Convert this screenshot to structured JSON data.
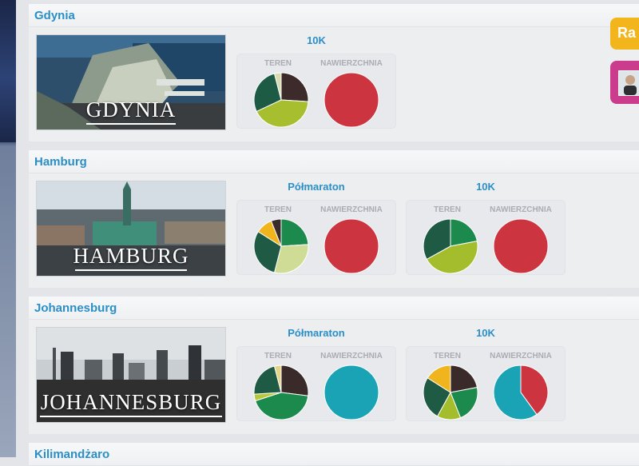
{
  "cities": [
    {
      "name": "Gdynia",
      "banner_label": "GDYNIA",
      "races": [
        {
          "title": "10K",
          "terrain_label": "TEREN",
          "surface_label": "NAWIERZCHNIA",
          "terrain": [
            {
              "value": 0.26,
              "color": "#3d2a2a"
            },
            {
              "value": 0.42,
              "color": "#a7bf2f"
            },
            {
              "value": 0.28,
              "color": "#1e5b45"
            },
            {
              "value": 0.04,
              "color": "#d7dbb0"
            }
          ],
          "surface": [
            {
              "value": 1.0,
              "color": "#cc3540"
            }
          ]
        }
      ]
    },
    {
      "name": "Hamburg",
      "banner_label": "HAMBURG",
      "races": [
        {
          "title": "Półmaraton",
          "terrain_label": "TEREN",
          "surface_label": "NAWIERZCHNIA",
          "terrain": [
            {
              "value": 0.24,
              "color": "#1c8a4d"
            },
            {
              "value": 0.3,
              "color": "#cfdc96"
            },
            {
              "value": 0.3,
              "color": "#1f5a44"
            },
            {
              "value": 0.1,
              "color": "#f0b51d"
            },
            {
              "value": 0.06,
              "color": "#3b2a2a"
            }
          ],
          "surface": [
            {
              "value": 1.0,
              "color": "#cc3540"
            }
          ]
        },
        {
          "title": "10K",
          "terrain_label": "TEREN",
          "surface_label": "NAWIERZCHNIA",
          "terrain": [
            {
              "value": 0.22,
              "color": "#1c8a4d"
            },
            {
              "value": 0.45,
              "color": "#a3bd2c"
            },
            {
              "value": 0.33,
              "color": "#1f5a44"
            }
          ],
          "surface": [
            {
              "value": 1.0,
              "color": "#cc3540"
            }
          ]
        }
      ]
    },
    {
      "name": "Johannesburg",
      "banner_label": "JOHANNESBURG",
      "races": [
        {
          "title": "Półmaraton",
          "terrain_label": "TEREN",
          "surface_label": "NAWIERZCHNIA",
          "terrain": [
            {
              "value": 0.27,
              "color": "#3b2a2a"
            },
            {
              "value": 0.43,
              "color": "#1c8a4d"
            },
            {
              "value": 0.04,
              "color": "#b7c938"
            },
            {
              "value": 0.22,
              "color": "#1f5a44"
            },
            {
              "value": 0.04,
              "color": "#e4d488"
            }
          ],
          "surface": [
            {
              "value": 1.0,
              "color": "#1aa3b4"
            }
          ]
        },
        {
          "title": "10K",
          "terrain_label": "TEREN",
          "surface_label": "NAWIERZCHNIA",
          "terrain": [
            {
              "value": 0.22,
              "color": "#3b2a2a"
            },
            {
              "value": 0.22,
              "color": "#1c8a4d"
            },
            {
              "value": 0.14,
              "color": "#a3bd2c"
            },
            {
              "value": 0.26,
              "color": "#1f5a44"
            },
            {
              "value": 0.16,
              "color": "#f0b51d"
            }
          ],
          "surface": [
            {
              "value": 0.4,
              "color": "#cc3540"
            },
            {
              "value": 0.6,
              "color": "#1aa3b4"
            }
          ]
        }
      ]
    },
    {
      "name": "Kilimandżaro",
      "banner_label": "",
      "races": []
    }
  ],
  "floating": {
    "ra_label": "Ra"
  }
}
